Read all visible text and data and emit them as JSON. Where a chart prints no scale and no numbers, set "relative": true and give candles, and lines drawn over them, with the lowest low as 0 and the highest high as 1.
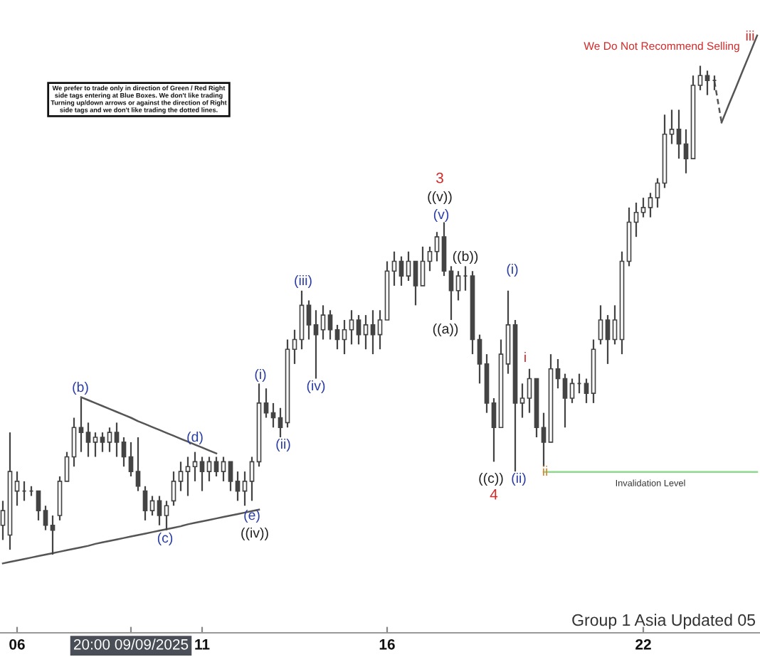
{
  "chart_data": {
    "type": "candlestick",
    "relative": true,
    "color": "#444444",
    "categories": [
      null,
      null,
      "06",
      null,
      null,
      null,
      null,
      null,
      null,
      null,
      null,
      null,
      null,
      null,
      null,
      null,
      null,
      null,
      "20:00 09/09/2025",
      null,
      null,
      null,
      null,
      null,
      null,
      null,
      null,
      null,
      "11",
      null,
      null,
      null,
      null,
      null,
      null,
      null,
      null,
      null,
      null,
      null,
      null,
      null,
      null,
      null,
      null,
      null,
      null,
      null,
      null,
      null,
      null,
      null,
      null,
      null,
      "16",
      null,
      null,
      null,
      null,
      null,
      null,
      null,
      null,
      null,
      null,
      null,
      null,
      null,
      null,
      null,
      null,
      null,
      null,
      null,
      null,
      null,
      null,
      null,
      null,
      null,
      null,
      null,
      null,
      null,
      null,
      null,
      null,
      null,
      null,
      null,
      "22",
      null,
      null,
      null,
      null,
      null,
      null,
      null,
      null,
      null,
      null,
      null,
      null,
      null,
      null,
      null,
      null
    ],
    "ohlc": [
      [
        0.06,
        0.11,
        0.03,
        0.09
      ],
      [
        0.04,
        0.25,
        0.01,
        0.17
      ],
      [
        0.13,
        0.17,
        0.1,
        0.15
      ],
      [
        0.13,
        0.15,
        0.11,
        0.13
      ],
      [
        0.13,
        0.14,
        0.12,
        0.13
      ],
      [
        0.13,
        0.13,
        0.07,
        0.09
      ],
      [
        0.09,
        0.1,
        0.05,
        0.06
      ],
      [
        0.06,
        0.08,
        0.0,
        0.05
      ],
      [
        0.08,
        0.16,
        0.07,
        0.15
      ],
      [
        0.15,
        0.21,
        0.15,
        0.2
      ],
      [
        0.2,
        0.28,
        0.18,
        0.26
      ],
      [
        0.26,
        0.32,
        0.21,
        0.25
      ],
      [
        0.25,
        0.27,
        0.2,
        0.23
      ],
      [
        0.23,
        0.25,
        0.2,
        0.24
      ],
      [
        0.24,
        0.25,
        0.21,
        0.23
      ],
      [
        0.23,
        0.26,
        0.21,
        0.25
      ],
      [
        0.25,
        0.27,
        0.2,
        0.23
      ],
      [
        0.23,
        0.24,
        0.18,
        0.2
      ],
      [
        0.2,
        0.23,
        0.16,
        0.17
      ],
      [
        0.17,
        0.24,
        0.13,
        0.14
      ],
      [
        0.13,
        0.14,
        0.07,
        0.09
      ],
      [
        0.09,
        0.12,
        0.08,
        0.11
      ],
      [
        0.11,
        0.12,
        0.06,
        0.08
      ],
      [
        0.08,
        0.11,
        0.05,
        0.1
      ],
      [
        0.11,
        0.17,
        0.1,
        0.15
      ],
      [
        0.15,
        0.19,
        0.13,
        0.17
      ],
      [
        0.17,
        0.2,
        0.12,
        0.18
      ],
      [
        0.18,
        0.21,
        0.15,
        0.19
      ],
      [
        0.19,
        0.2,
        0.13,
        0.17
      ],
      [
        0.17,
        0.2,
        0.15,
        0.19
      ],
      [
        0.19,
        0.2,
        0.16,
        0.17
      ],
      [
        0.17,
        0.2,
        0.15,
        0.19
      ],
      [
        0.19,
        0.19,
        0.13,
        0.15
      ],
      [
        0.15,
        0.17,
        0.11,
        0.13
      ],
      [
        0.13,
        0.17,
        0.1,
        0.15
      ],
      [
        0.15,
        0.2,
        0.11,
        0.19
      ],
      [
        0.19,
        0.35,
        0.18,
        0.31
      ],
      [
        0.31,
        0.34,
        0.28,
        0.29
      ],
      [
        0.29,
        0.31,
        0.26,
        0.28
      ],
      [
        0.28,
        0.3,
        0.24,
        0.26
      ],
      [
        0.27,
        0.44,
        0.26,
        0.42
      ],
      [
        0.42,
        0.46,
        0.39,
        0.44
      ],
      [
        0.44,
        0.54,
        0.42,
        0.51
      ],
      [
        0.51,
        0.52,
        0.44,
        0.47
      ],
      [
        0.47,
        0.5,
        0.36,
        0.45
      ],
      [
        0.46,
        0.51,
        0.44,
        0.49
      ],
      [
        0.49,
        0.5,
        0.44,
        0.46
      ],
      [
        0.46,
        0.47,
        0.42,
        0.44
      ],
      [
        0.44,
        0.48,
        0.41,
        0.46
      ],
      [
        0.46,
        0.5,
        0.43,
        0.48
      ],
      [
        0.48,
        0.49,
        0.43,
        0.45
      ],
      [
        0.45,
        0.49,
        0.42,
        0.47
      ],
      [
        0.47,
        0.5,
        0.41,
        0.45
      ],
      [
        0.45,
        0.5,
        0.42,
        0.48
      ],
      [
        0.48,
        0.6,
        0.48,
        0.58
      ],
      [
        0.58,
        0.62,
        0.55,
        0.6
      ],
      [
        0.6,
        0.61,
        0.55,
        0.57
      ],
      [
        0.57,
        0.62,
        0.56,
        0.6
      ],
      [
        0.6,
        0.6,
        0.51,
        0.55
      ],
      [
        0.55,
        0.63,
        0.55,
        0.6
      ],
      [
        0.6,
        0.63,
        0.58,
        0.62
      ],
      [
        0.62,
        0.66,
        0.6,
        0.65
      ],
      [
        0.65,
        0.68,
        0.57,
        0.58
      ],
      [
        0.58,
        0.59,
        0.48,
        0.54
      ],
      [
        0.54,
        0.58,
        0.52,
        0.57
      ],
      [
        0.57,
        0.59,
        0.54,
        0.57
      ],
      [
        0.57,
        0.58,
        0.41,
        0.44
      ],
      [
        0.44,
        0.45,
        0.35,
        0.39
      ],
      [
        0.39,
        0.41,
        0.29,
        0.31
      ],
      [
        0.31,
        0.32,
        0.19,
        0.26
      ],
      [
        0.26,
        0.44,
        0.26,
        0.41
      ],
      [
        0.39,
        0.54,
        0.37,
        0.47
      ],
      [
        0.47,
        0.48,
        0.17,
        0.31
      ],
      [
        0.31,
        0.35,
        0.28,
        0.32
      ],
      [
        0.32,
        0.38,
        0.29,
        0.36
      ],
      [
        0.36,
        0.36,
        0.24,
        0.26
      ],
      [
        0.26,
        0.29,
        0.18,
        0.23
      ],
      [
        0.23,
        0.41,
        0.23,
        0.38
      ],
      [
        0.38,
        0.4,
        0.34,
        0.36
      ],
      [
        0.36,
        0.37,
        0.26,
        0.32
      ],
      [
        0.32,
        0.36,
        0.31,
        0.35
      ],
      [
        0.35,
        0.37,
        0.33,
        0.35
      ],
      [
        0.35,
        0.36,
        0.31,
        0.33
      ],
      [
        0.33,
        0.44,
        0.31,
        0.42
      ],
      [
        0.44,
        0.51,
        0.43,
        0.48
      ],
      [
        0.48,
        0.49,
        0.39,
        0.44
      ],
      [
        0.44,
        0.51,
        0.43,
        0.48
      ],
      [
        0.44,
        0.62,
        0.41,
        0.6
      ],
      [
        0.6,
        0.71,
        0.59,
        0.68
      ],
      [
        0.68,
        0.72,
        0.65,
        0.7
      ],
      [
        0.7,
        0.73,
        0.69,
        0.71
      ],
      [
        0.71,
        0.74,
        0.69,
        0.73
      ],
      [
        0.73,
        0.77,
        0.71,
        0.76
      ],
      [
        0.76,
        0.9,
        0.75,
        0.86
      ],
      [
        0.86,
        0.91,
        0.84,
        0.87
      ],
      [
        0.87,
        0.91,
        0.81,
        0.84
      ],
      [
        0.84,
        0.87,
        0.78,
        0.81
      ],
      [
        0.81,
        0.98,
        0.81,
        0.96
      ],
      [
        0.96,
        1.0,
        0.95,
        0.98
      ],
      [
        0.98,
        0.99,
        0.94,
        0.97
      ],
      [
        0.97,
        0.98,
        0.95,
        0.97
      ],
      null,
      null,
      null,
      null,
      null,
      null
    ],
    "series": [
      {
        "type": "line",
        "color": "#555555",
        "values": [
          null,
          null,
          null,
          null,
          null,
          null,
          null,
          null,
          null,
          null,
          null,
          0.322,
          0.316,
          0.31,
          0.304,
          0.298,
          0.292,
          0.286,
          0.28,
          0.273,
          0.267,
          0.261,
          0.255,
          0.249,
          0.243,
          0.237,
          0.231,
          0.225,
          0.219,
          0.213,
          0.207,
          null,
          null,
          null,
          null,
          null,
          null,
          null,
          null,
          null,
          null,
          null,
          null,
          null,
          null,
          null,
          null,
          null,
          null,
          null,
          null,
          null,
          null,
          null,
          null,
          null,
          null,
          null,
          null,
          null,
          null,
          null,
          null,
          null,
          null,
          null,
          null,
          null,
          null,
          null,
          null,
          null,
          null,
          null,
          null,
          null,
          null,
          null,
          null,
          null,
          null,
          null,
          null,
          null,
          null,
          null,
          null,
          null,
          null,
          null,
          null,
          null,
          null,
          null,
          null,
          null,
          null,
          null,
          null,
          null,
          null,
          null,
          null,
          null,
          null,
          null,
          null
        ]
      },
      {
        "type": "line",
        "color": "#555555",
        "values": [
          -0.018,
          -0.015,
          -0.012,
          -0.009,
          -0.006,
          -0.003,
          0.0,
          0.003,
          0.006,
          0.009,
          0.012,
          0.015,
          0.018,
          0.022,
          0.025,
          0.028,
          0.031,
          0.034,
          0.037,
          0.04,
          0.043,
          0.046,
          0.049,
          0.052,
          0.055,
          0.058,
          0.062,
          0.065,
          0.068,
          0.071,
          0.074,
          0.077,
          0.08,
          0.083,
          0.086,
          0.089,
          0.092,
          null,
          null,
          null,
          null,
          null,
          null,
          null,
          null,
          null,
          null,
          null,
          null,
          null,
          null,
          null,
          null,
          null,
          null,
          null,
          null,
          null,
          null,
          null,
          null,
          null,
          null,
          null,
          null,
          null,
          null,
          null,
          null,
          null,
          null,
          null,
          null,
          null,
          null,
          null,
          null,
          null,
          null,
          null,
          null,
          null,
          null,
          null,
          null,
          null,
          null,
          null,
          null,
          null,
          null,
          null,
          null,
          null,
          null,
          null,
          null,
          null,
          null,
          null,
          null,
          null,
          null,
          null,
          null,
          null,
          null
        ]
      },
      {
        "type": "line",
        "color": "#555555",
        "line_style": "dashed",
        "values": [
          null,
          null,
          null,
          null,
          null,
          null,
          null,
          null,
          null,
          null,
          null,
          null,
          null,
          null,
          null,
          null,
          null,
          null,
          null,
          null,
          null,
          null,
          null,
          null,
          null,
          null,
          null,
          null,
          null,
          null,
          null,
          null,
          null,
          null,
          null,
          null,
          null,
          null,
          null,
          null,
          null,
          null,
          null,
          null,
          null,
          null,
          null,
          null,
          null,
          null,
          null,
          null,
          null,
          null,
          null,
          null,
          null,
          null,
          null,
          null,
          null,
          null,
          null,
          null,
          null,
          null,
          null,
          null,
          null,
          null,
          null,
          null,
          null,
          null,
          null,
          null,
          null,
          null,
          null,
          null,
          null,
          null,
          null,
          null,
          null,
          null,
          null,
          null,
          null,
          null,
          null,
          null,
          null,
          null,
          null,
          null,
          null,
          null,
          null,
          null,
          0.968,
          0.884,
          null,
          null,
          null,
          null,
          null
        ]
      },
      {
        "type": "line",
        "color": "#555555",
        "values": [
          null,
          null,
          null,
          null,
          null,
          null,
          null,
          null,
          null,
          null,
          null,
          null,
          null,
          null,
          null,
          null,
          null,
          null,
          null,
          null,
          null,
          null,
          null,
          null,
          null,
          null,
          null,
          null,
          null,
          null,
          null,
          null,
          null,
          null,
          null,
          null,
          null,
          null,
          null,
          null,
          null,
          null,
          null,
          null,
          null,
          null,
          null,
          null,
          null,
          null,
          null,
          null,
          null,
          null,
          null,
          null,
          null,
          null,
          null,
          null,
          null,
          null,
          null,
          null,
          null,
          null,
          null,
          null,
          null,
          null,
          null,
          null,
          null,
          null,
          null,
          null,
          null,
          null,
          null,
          null,
          null,
          null,
          null,
          null,
          null,
          null,
          null,
          null,
          null,
          null,
          null,
          null,
          null,
          null,
          null,
          null,
          null,
          null,
          null,
          null,
          null,
          0.884,
          0.92,
          0.955,
          0.991,
          1.026,
          1.062
        ]
      },
      {
        "type": "line",
        "name": "Invalidation Level",
        "color": "#8ed98e",
        "values": [
          null,
          null,
          null,
          null,
          null,
          null,
          null,
          null,
          null,
          null,
          null,
          null,
          null,
          null,
          null,
          null,
          null,
          null,
          null,
          null,
          null,
          null,
          null,
          null,
          null,
          null,
          null,
          null,
          null,
          null,
          null,
          null,
          null,
          null,
          null,
          null,
          null,
          null,
          null,
          null,
          null,
          null,
          null,
          null,
          null,
          null,
          null,
          null,
          null,
          null,
          null,
          null,
          null,
          null,
          null,
          null,
          null,
          null,
          null,
          null,
          null,
          null,
          null,
          null,
          null,
          null,
          null,
          null,
          null,
          null,
          null,
          null,
          null,
          null,
          null,
          null,
          0.169,
          0.169,
          0.169,
          0.169,
          0.169,
          0.169,
          0.169,
          0.169,
          0.169,
          0.169,
          0.169,
          0.169,
          0.169,
          0.169,
          0.169,
          0.169,
          0.169,
          0.169,
          0.169,
          0.169,
          0.169,
          0.169,
          0.169,
          0.169,
          0.169,
          0.169,
          0.169,
          0.169,
          0.169,
          0.169,
          0.169
        ]
      }
    ],
    "annotations": [
      "We prefer to trade only in direction of Green / Red Right\nside tags entering at Blue Boxes. We don't like trading\nTurning up/down arrows or against the direction of Right\nside tags and we don't like trading the dotted lines.",
      "We Do Not Recommend Selling",
      "Group 1 Asia Updated 05",
      "(b)",
      "(d)",
      "(c)",
      "(e)",
      "((iv))",
      "(i)",
      "(ii)",
      "(iii)",
      "(iv)",
      "3",
      "((v))",
      "(v)",
      "((b))",
      "((a))",
      "((c))",
      "(ii)",
      "4",
      "(i)",
      "i",
      "ii",
      "iii"
    ]
  }
}
